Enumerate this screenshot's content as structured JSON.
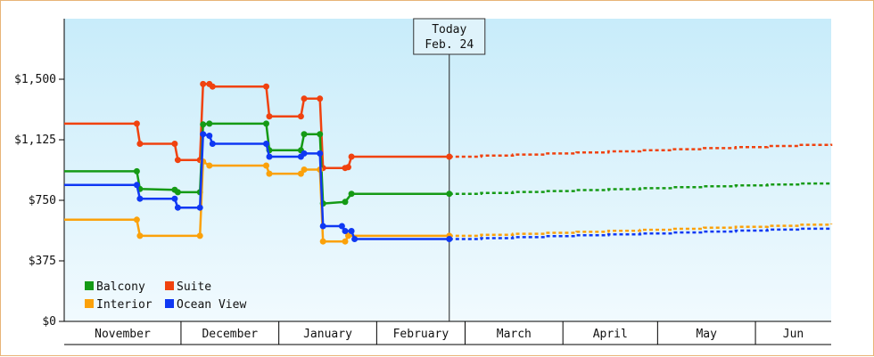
{
  "chart_data": {
    "type": "line",
    "title": "",
    "xlabel": "",
    "ylabel": "",
    "ylim": [
      0,
      1875
    ],
    "y_ticks": [
      {
        "value": 0,
        "label": "$0"
      },
      {
        "value": 375,
        "label": "$375"
      },
      {
        "value": 750,
        "label": "$750"
      },
      {
        "value": 1125,
        "label": "$1,125"
      },
      {
        "value": 1500,
        "label": "$1,500"
      }
    ],
    "xlim": [
      "2024-10-25",
      "2025-06-25"
    ],
    "months": [
      {
        "label": "November",
        "start": "2024-10-25",
        "end": "2024-12-01"
      },
      {
        "label": "December",
        "start": "2024-12-01",
        "end": "2025-01-01"
      },
      {
        "label": "January",
        "start": "2025-01-01",
        "end": "2025-02-01"
      },
      {
        "label": "February",
        "start": "2025-02-01",
        "end": "2025-03-01"
      },
      {
        "label": "March",
        "start": "2025-03-01",
        "end": "2025-04-01"
      },
      {
        "label": "April",
        "start": "2025-04-01",
        "end": "2025-05-01"
      },
      {
        "label": "May",
        "start": "2025-05-01",
        "end": "2025-06-01"
      },
      {
        "label": "Jun",
        "start": "2025-06-01",
        "end": "2025-06-25"
      }
    ],
    "today": {
      "date": "2025-02-24",
      "line1": "Today",
      "line2": "Feb. 24"
    },
    "legend_position": "bottom-left",
    "grid": false,
    "colors": {
      "plot_top": "#c8ecfa",
      "plot_bottom": "#f1fafe",
      "border": "#e8b477"
    },
    "series": [
      {
        "name": "Suite",
        "color": "#f0420f",
        "points": [
          [
            "2024-10-25",
            1225
          ],
          [
            "2024-11-17",
            1225
          ],
          [
            "2024-11-18",
            1100
          ],
          [
            "2024-11-29",
            1100
          ],
          [
            "2024-11-30",
            1000
          ],
          [
            "2024-12-07",
            1000
          ],
          [
            "2024-12-08",
            1470
          ],
          [
            "2024-12-10",
            1470
          ],
          [
            "2024-12-11",
            1455
          ],
          [
            "2024-12-28",
            1455
          ],
          [
            "2024-12-29",
            1270
          ],
          [
            "2025-01-08",
            1270
          ],
          [
            "2025-01-09",
            1380
          ],
          [
            "2025-01-14",
            1380
          ],
          [
            "2025-01-15",
            950
          ],
          [
            "2025-01-22",
            950
          ],
          [
            "2025-01-23",
            955
          ],
          [
            "2025-01-24",
            1020
          ],
          [
            "2025-02-24",
            1020
          ]
        ],
        "forecast": [
          [
            "2025-02-24",
            1020
          ],
          [
            "2025-06-25",
            1100
          ]
        ]
      },
      {
        "name": "Balcony",
        "color": "#159a15",
        "points": [
          [
            "2024-10-25",
            930
          ],
          [
            "2024-11-17",
            930
          ],
          [
            "2024-11-18",
            820
          ],
          [
            "2024-11-29",
            815
          ],
          [
            "2024-11-30",
            800
          ],
          [
            "2024-12-07",
            800
          ],
          [
            "2024-12-08",
            1220
          ],
          [
            "2024-12-10",
            1225
          ],
          [
            "2024-12-28",
            1225
          ],
          [
            "2024-12-29",
            1060
          ],
          [
            "2025-01-08",
            1060
          ],
          [
            "2025-01-09",
            1160
          ],
          [
            "2025-01-14",
            1160
          ],
          [
            "2025-01-15",
            730
          ],
          [
            "2025-01-22",
            740
          ],
          [
            "2025-01-24",
            790
          ],
          [
            "2025-02-24",
            790
          ]
        ],
        "forecast": [
          [
            "2025-02-24",
            790
          ],
          [
            "2025-06-25",
            860
          ]
        ]
      },
      {
        "name": "Interior",
        "color": "#fba10a",
        "points": [
          [
            "2024-10-25",
            630
          ],
          [
            "2024-11-17",
            630
          ],
          [
            "2024-11-18",
            530
          ],
          [
            "2024-12-07",
            530
          ],
          [
            "2024-12-08",
            990
          ],
          [
            "2024-12-10",
            965
          ],
          [
            "2024-12-28",
            965
          ],
          [
            "2024-12-29",
            915
          ],
          [
            "2025-01-08",
            915
          ],
          [
            "2025-01-09",
            940
          ],
          [
            "2025-01-14",
            940
          ],
          [
            "2025-01-15",
            495
          ],
          [
            "2025-01-22",
            495
          ],
          [
            "2025-01-23",
            530
          ],
          [
            "2025-02-24",
            530
          ]
        ],
        "forecast": [
          [
            "2025-02-24",
            530
          ],
          [
            "2025-06-25",
            605
          ]
        ]
      },
      {
        "name": "Ocean View",
        "color": "#0f38f3",
        "points": [
          [
            "2024-10-25",
            845
          ],
          [
            "2024-11-17",
            845
          ],
          [
            "2024-11-18",
            760
          ],
          [
            "2024-11-29",
            760
          ],
          [
            "2024-11-30",
            705
          ],
          [
            "2024-12-07",
            705
          ],
          [
            "2024-12-08",
            1160
          ],
          [
            "2024-12-10",
            1150
          ],
          [
            "2024-12-11",
            1100
          ],
          [
            "2024-12-28",
            1100
          ],
          [
            "2024-12-29",
            1020
          ],
          [
            "2025-01-08",
            1020
          ],
          [
            "2025-01-09",
            1040
          ],
          [
            "2025-01-14",
            1040
          ],
          [
            "2025-01-15",
            590
          ],
          [
            "2025-01-21",
            590
          ],
          [
            "2025-01-22",
            560
          ],
          [
            "2025-01-24",
            560
          ],
          [
            "2025-01-25",
            510
          ],
          [
            "2025-02-24",
            510
          ]
        ],
        "forecast": [
          [
            "2025-02-24",
            510
          ],
          [
            "2025-06-25",
            580
          ]
        ]
      }
    ]
  }
}
